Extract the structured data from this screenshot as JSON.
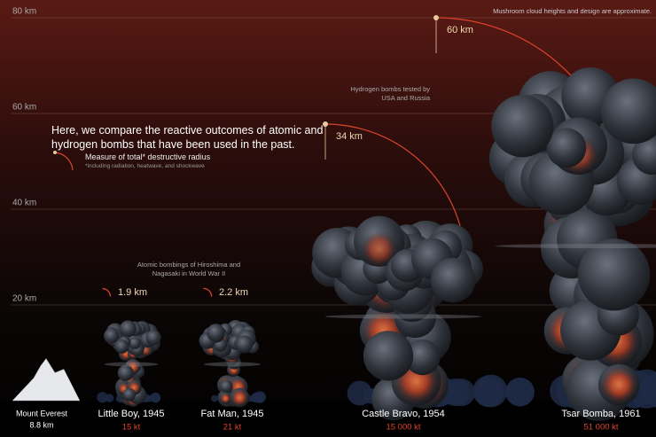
{
  "chart_data": {
    "type": "mushroom",
    "title": "Here, we compare the reactive outcomes of atomic and hydrogen bombs that have been used in the past.",
    "note": "Mushroom cloud heights and design are approximate.",
    "legend": {
      "label": "Measure of total* destructive radius",
      "footnote": "*including radiation, heatwave, and shockwave"
    },
    "groups": [
      "Atomic bombings of Hiroshima and Nagasaki in World War II",
      "Hydrogen bombs tested by USA and Russia"
    ],
    "ylim": [
      0,
      83.7
    ],
    "yticks": [
      {
        "value": 20,
        "label": "20 km"
      },
      {
        "value": 40,
        "label": "40 km"
      },
      {
        "value": 60,
        "label": "60 km"
      },
      {
        "value": 80,
        "label": "80 km"
      }
    ],
    "reference": {
      "name": "Mount Everest",
      "value": 8.8,
      "value_label": "8.8 km"
    },
    "categories": [
      "Little Boy, 1945",
      "Fat Man, 1945",
      "Castle Bravo, 1954",
      "Tsar Bomba, 1961"
    ],
    "cloud_heights": [
      16,
      16,
      37,
      68
    ],
    "yield": {
      "values": [
        15,
        21,
        15000,
        51000
      ],
      "value_labels": [
        "15 kt",
        "21 kt",
        "15 000 kt",
        "51 000 kt"
      ],
      "color": "#e0452e"
    },
    "radius": {
      "values": [
        1.9,
        2.2,
        34,
        60
      ],
      "value_labels": [
        "1.9 km",
        "2.2 km",
        "34 km",
        "60 km"
      ],
      "color": "#d9442c"
    }
  }
}
